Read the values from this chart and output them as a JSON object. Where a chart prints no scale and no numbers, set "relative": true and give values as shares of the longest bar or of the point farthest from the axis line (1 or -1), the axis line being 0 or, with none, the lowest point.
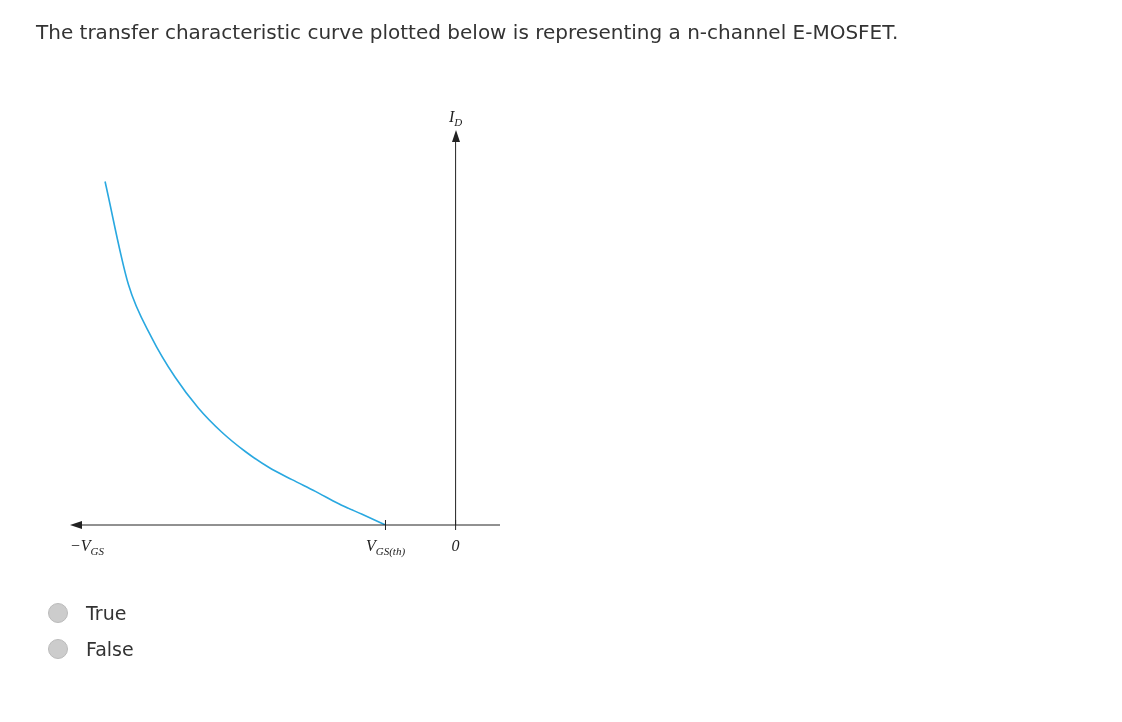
{
  "chart_data": {
    "type": "line",
    "title": "The transfer characteristic curve plotted below is representing a n-channel E-MOSFET.",
    "xlabel": "−V$_{GS}$",
    "ylabel": "I$_{D}$",
    "relative": true,
    "marker": "none",
    "color": "#29a8e0",
    "categories": [
      null,
      null,
      null,
      null,
      null,
      null,
      null,
      null,
      null,
      null,
      null,
      null,
      "V$_{GS(th)}$",
      null,
      null,
      "0"
    ],
    "values": [
      1,
      0.7,
      0.545,
      0.43,
      0.34,
      0.27,
      0.214,
      0.168,
      0.132,
      0.098,
      0.062,
      0.031,
      0,
      null,
      null,
      null
    ],
    "annotations": [
      "True",
      "False"
    ]
  }
}
